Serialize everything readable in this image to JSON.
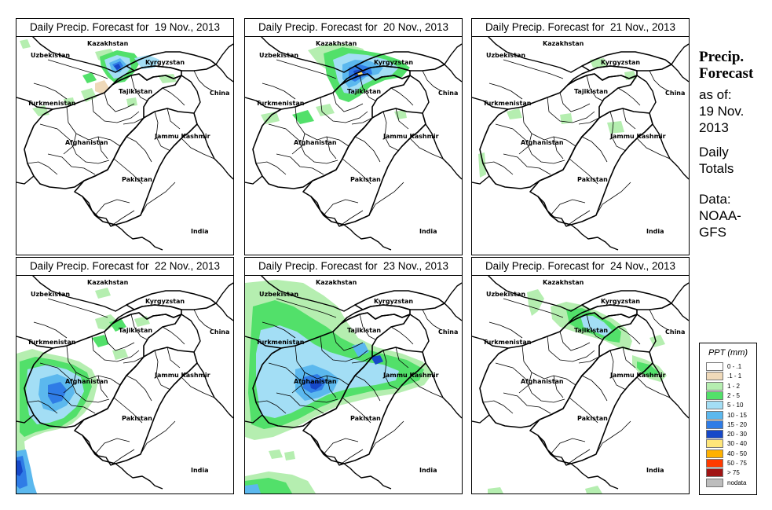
{
  "title_prefix": "Daily Precip. Forecast for ",
  "panels": [
    {
      "date": "19 Nov., 2013",
      "pattern": "p19"
    },
    {
      "date": "20 Nov., 2013",
      "pattern": "p20"
    },
    {
      "date": "21 Nov., 2013",
      "pattern": "p21"
    },
    {
      "date": "22 Nov., 2013",
      "pattern": "p22"
    },
    {
      "date": "23 Nov., 2013",
      "pattern": "p23"
    },
    {
      "date": "24 Nov., 2013",
      "pattern": "p24"
    }
  ],
  "map_labels": {
    "kazakhstan": "Kazakhstan",
    "uzbekistan": "Uzbekistan",
    "kyrgyzstan": "Kyrgyzstan",
    "tajikistan": "Tajikistan",
    "china": "China",
    "turkmenistan": "Turkmenistan",
    "jammu_kashmir": "Jammu Kashmir",
    "afghanistan": "Afghanistan",
    "pakistan": "Pakistan",
    "india": "India"
  },
  "sidebar": {
    "heading_line1": "Precip.",
    "heading_line2": "Forecast",
    "asof_line1": "as of:",
    "asof_line2": "19 Nov.",
    "asof_line3": "2013",
    "type_line1": "Daily",
    "type_line2": "Totals",
    "src_line1": "Data:",
    "src_line2": "NOAA-",
    "src_line3": "GFS"
  },
  "legend": {
    "title": "PPT (mm)",
    "items": [
      {
        "label": "0 - .1",
        "color": "#ffffff"
      },
      {
        "label": ".1 - 1",
        "color": "#efd9b9"
      },
      {
        "label": "1 - 2",
        "color": "#b5eeb0"
      },
      {
        "label": "2 - 5",
        "color": "#52e06a"
      },
      {
        "label": "5 - 10",
        "color": "#a3def5"
      },
      {
        "label": "10 - 15",
        "color": "#5bb8ee"
      },
      {
        "label": "15 - 20",
        "color": "#2f7ce6"
      },
      {
        "label": "20 - 30",
        "color": "#1648c8"
      },
      {
        "label": "30 - 40",
        "color": "#ffe67a"
      },
      {
        "label": "40 - 50",
        "color": "#ffb100"
      },
      {
        "label": "50 - 75",
        "color": "#ff3b00"
      },
      {
        "label": "> 75",
        "color": "#a01414"
      },
      {
        "label": "nodata",
        "color": "#bdbdbd"
      }
    ]
  }
}
